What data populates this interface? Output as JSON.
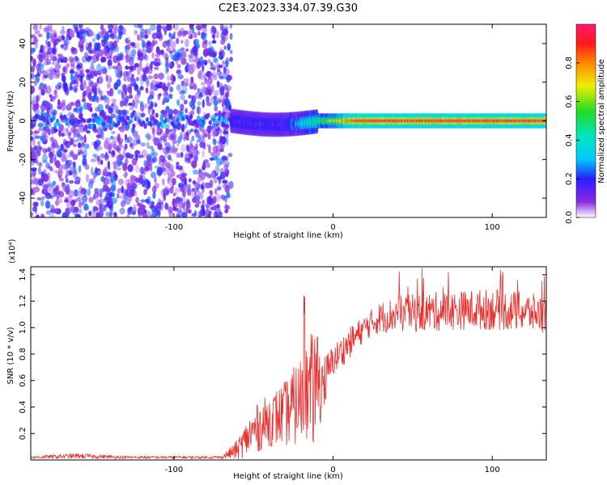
{
  "title": "C2E3.2023.334.07.39.G30",
  "colors": {
    "line": "#e8312f",
    "frame": "#000000",
    "scatter": "#7a1fe0"
  },
  "chart_data": [
    {
      "type": "heatmap",
      "xlabel": "Height of straight line (km)",
      "ylabel": "Frequency (Hz)",
      "xlim": [
        -190,
        134
      ],
      "ylim": [
        -50,
        50
      ],
      "xticks": [
        -100,
        0,
        100
      ],
      "xtick_labels": [
        "-100",
        "0",
        "100"
      ],
      "yticks": [
        -40,
        -20,
        0,
        20,
        40
      ],
      "ytick_labels": [
        "-40",
        "-20",
        "0",
        "20",
        "40"
      ],
      "noise_region_x": [
        -190,
        -64
      ],
      "signal_band": {
        "x_start": -64,
        "center_hz": 0,
        "halfwidth_hz": 4
      },
      "colorbar": {
        "label": "Normalized spectral amplitude",
        "range": [
          0.0,
          1.0
        ],
        "ticks": [
          0.0,
          0.2,
          0.4,
          0.6,
          0.8
        ],
        "tick_labels": [
          "0.0",
          "0.2",
          "0.4",
          "0.6",
          "0.8"
        ]
      },
      "grid": false
    },
    {
      "type": "line",
      "xlabel": "Height of straight line (km)",
      "ylabel": "SNR (10 * v/v)",
      "ylabel_scale": "(x10⁴)",
      "xlim": [
        -190,
        134
      ],
      "ylim": [
        0,
        1.46
      ],
      "xticks": [
        -100,
        0,
        100
      ],
      "xtick_labels": [
        "-100",
        "0",
        "100"
      ],
      "yticks": [
        0.2,
        0.4,
        0.6,
        0.8,
        1.0,
        1.2,
        1.4
      ],
      "ytick_labels": [
        "0.2",
        "0.4",
        "0.6",
        "0.8",
        "1.0",
        "1.2",
        "1.4"
      ],
      "series": [
        {
          "x": [
            -190,
            -160,
            -130,
            -100,
            -70,
            -60,
            -50,
            -40,
            -30,
            -20,
            -12,
            -5,
            0,
            10,
            20,
            30,
            40,
            60,
            80,
            100,
            120,
            134
          ],
          "y": [
            0.02,
            0.03,
            0.02,
            0.02,
            0.02,
            0.08,
            0.22,
            0.3,
            0.35,
            0.45,
            0.55,
            0.6,
            0.75,
            0.88,
            1.0,
            1.08,
            1.1,
            1.12,
            1.13,
            1.14,
            1.12,
            1.1
          ],
          "amp": [
            0.01,
            0.02,
            0.01,
            0.01,
            0.01,
            0.08,
            0.18,
            0.2,
            0.25,
            0.35,
            0.45,
            0.2,
            0.12,
            0.12,
            0.1,
            0.12,
            0.14,
            0.15,
            0.15,
            0.16,
            0.15,
            0.14
          ]
        }
      ],
      "grid": false
    }
  ]
}
